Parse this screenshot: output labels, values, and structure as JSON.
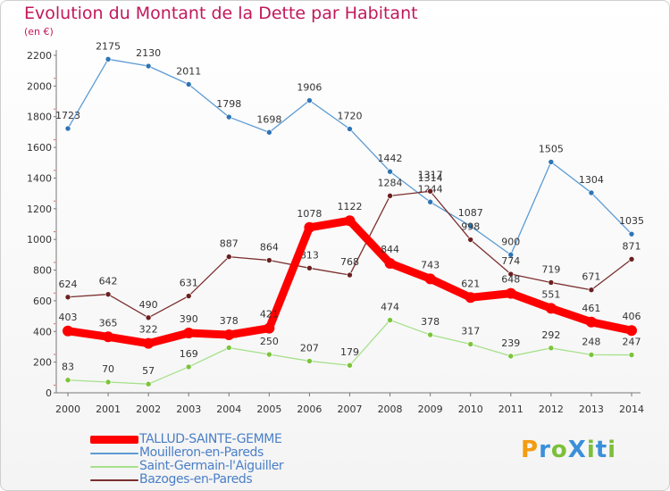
{
  "title": "Evolution du Montant de la Dette par Habitant",
  "unit": "(en €)",
  "logo": "ProXiti",
  "chart_data": {
    "type": "line",
    "title": "Evolution du Montant de la Dette par Habitant",
    "ylabel": "(en €)",
    "x": [
      2000,
      2001,
      2002,
      2003,
      2004,
      2005,
      2006,
      2007,
      2008,
      2009,
      2010,
      2011,
      2012,
      2013,
      2014
    ],
    "ylim": [
      0,
      2200
    ],
    "yticks": [
      0,
      200,
      400,
      600,
      800,
      1000,
      1200,
      1400,
      1600,
      1800,
      2000,
      2200
    ],
    "grid": false,
    "legend": "bottom-left",
    "series": [
      {
        "name": "Mouilleron-en-Pareds",
        "color": "#5b9bd5",
        "marker": "#2e75b6",
        "values": [
          1723,
          2175,
          2130,
          2011,
          1798,
          1698,
          1906,
          1720,
          1442,
          1244,
          1087,
          900,
          1505,
          1304,
          1035
        ],
        "labels": [
          "1723",
          "2175",
          "2130",
          "2011",
          "1798",
          "1698",
          "1906",
          "1720",
          "1442",
          "1244",
          "1087",
          "900",
          "1505",
          "1304",
          "1035"
        ]
      },
      {
        "name": "Saint-Germain-l'Aiguiller",
        "color": "#a6e08a",
        "marker": "#7cc43a",
        "values": [
          83,
          70,
          57,
          169,
          294,
          250,
          207,
          179,
          474,
          378,
          317,
          239,
          292,
          248,
          247
        ],
        "labels": [
          "83",
          "70",
          "57",
          "169",
          "294",
          "250",
          "207",
          "179",
          "474",
          "378",
          "317",
          "239",
          "292",
          "248",
          "247"
        ]
      },
      {
        "name": "Bazoges-en-Pareds",
        "color": "#7b2f2f",
        "marker": "#6b2020",
        "values": [
          624,
          642,
          490,
          631,
          887,
          864,
          813,
          768,
          1284,
          1314,
          998,
          774,
          719,
          671,
          871
        ],
        "labels": [
          "624",
          "642",
          "490",
          "631",
          "887",
          "864",
          "813",
          "768",
          "1284",
          "1314",
          "998",
          "774",
          "719",
          "671",
          "871"
        ]
      },
      {
        "name": "TALLUD-SAINTE-GEMME",
        "color": "#ff0000",
        "marker": "#ff0000",
        "values": [
          403,
          365,
          322,
          390,
          378,
          421,
          1078,
          1122,
          844,
          743,
          621,
          648,
          551,
          461,
          406
        ],
        "labels": [
          "403",
          "365",
          "322",
          "390",
          "378",
          "421",
          "1078",
          "1122",
          "844",
          "743",
          "621",
          "648",
          "551",
          "461",
          "406"
        ]
      }
    ],
    "extra_labels": [
      "1317"
    ]
  },
  "legend": [
    {
      "name": "TALLUD-SAINTE-GEMME",
      "color": "#ff0000"
    },
    {
      "name": "Mouilleron-en-Pareds",
      "color": "#5b9bd5"
    },
    {
      "name": "Saint-Germain-l'Aiguiller",
      "color": "#a6e08a"
    },
    {
      "name": "Bazoges-en-Pareds",
      "color": "#7b2f2f"
    }
  ]
}
